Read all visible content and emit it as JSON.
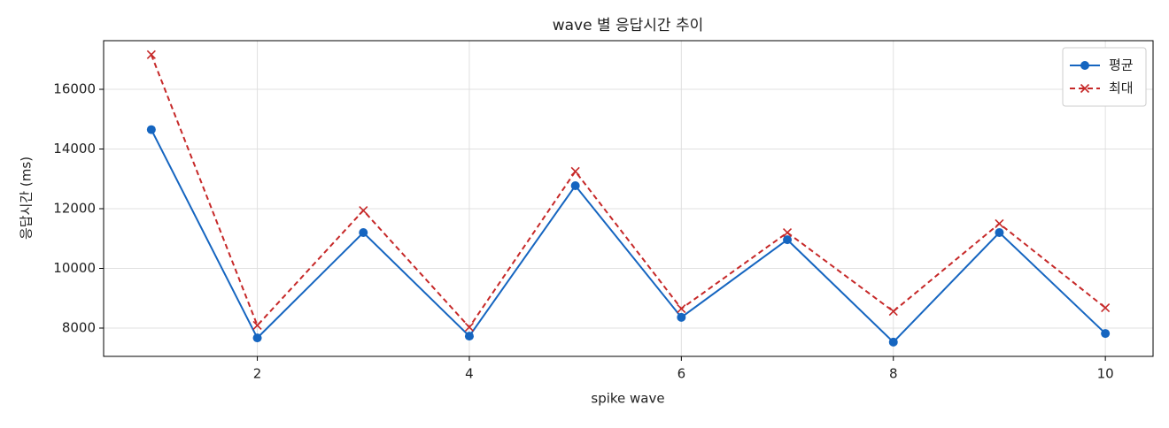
{
  "chart_data": {
    "type": "line",
    "title": "wave 별 응답시간 추이",
    "xlabel": "spike wave",
    "ylabel": "응답시간 (ms)",
    "x": [
      1,
      2,
      3,
      4,
      5,
      6,
      7,
      8,
      9,
      10
    ],
    "series": [
      {
        "name": "평균",
        "color": "#1565c0",
        "marker": "circle",
        "dash": false,
        "values": [
          14650,
          7670,
          11200,
          7730,
          12770,
          8360,
          10960,
          7530,
          11200,
          7820
        ]
      },
      {
        "name": "최대",
        "color": "#c62828",
        "marker": "x",
        "dash": true,
        "values": [
          17160,
          8090,
          11940,
          8030,
          13250,
          8650,
          11200,
          8560,
          11500,
          8680
        ]
      }
    ],
    "xlim": [
      0.55,
      10.45
    ],
    "xticks": [
      2,
      4,
      6,
      8,
      10
    ],
    "ylim": [
      7052,
      17630
    ],
    "yticks": [
      8000,
      10000,
      12000,
      14000,
      16000
    ],
    "grid": true,
    "legend": "upper right"
  }
}
